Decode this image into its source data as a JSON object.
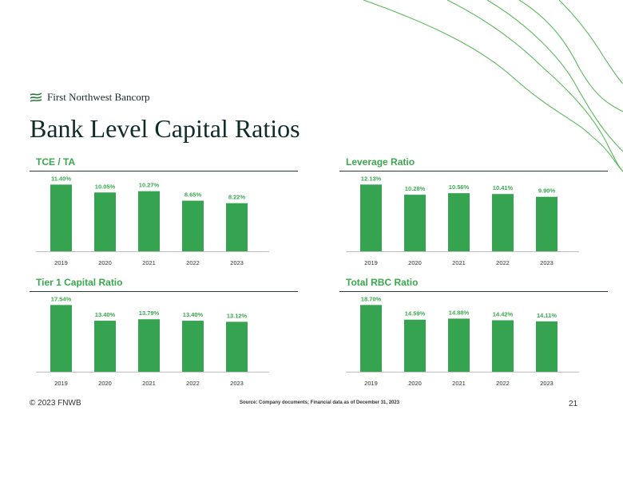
{
  "brand": {
    "name": "First Northwest Bancorp",
    "accent": "#35a350",
    "wave_color": "#5cb85c"
  },
  "slide": {
    "title": "Bank Level Capital Ratios",
    "page_number": "21"
  },
  "footer": {
    "copyright": "© 2023 FNWB",
    "source": "Source: Company documents; Financial data as of  December 31, 2023"
  },
  "chart_data": [
    {
      "type": "bar",
      "title": "TCE / TA",
      "categories": [
        "2019",
        "2020",
        "2021",
        "2022",
        "2023"
      ],
      "values": [
        11.4,
        10.05,
        10.27,
        8.65,
        8.22
      ],
      "labels": [
        "11.40%",
        "10.05%",
        "10.27%",
        "8.65%",
        "8.22%"
      ],
      "ylim": [
        0,
        12
      ]
    },
    {
      "type": "bar",
      "title": "Leverage Ratio",
      "categories": [
        "2019",
        "2020",
        "2021",
        "2022",
        "2023"
      ],
      "values": [
        12.13,
        10.28,
        10.56,
        10.41,
        9.9
      ],
      "labels": [
        "12.13%",
        "10.28%",
        "10.56%",
        "10.41%",
        "9.90%"
      ],
      "ylim": [
        0,
        12.76
      ]
    },
    {
      "type": "bar",
      "title": "Tier 1 Capital Ratio",
      "categories": [
        "2019",
        "2020",
        "2021",
        "2022",
        "2023"
      ],
      "values": [
        17.54,
        13.4,
        13.79,
        13.4,
        13.12
      ],
      "labels": [
        "17.54%",
        "13.40%",
        "13.79%",
        "13.40%",
        "13.12%"
      ],
      "ylim": [
        0,
        18.45
      ]
    },
    {
      "type": "bar",
      "title": "Total RBC Ratio",
      "categories": [
        "2019",
        "2020",
        "2021",
        "2022",
        "2023"
      ],
      "values": [
        18.7,
        14.59,
        14.88,
        14.42,
        14.11
      ],
      "labels": [
        "18.70%",
        "14.59%",
        "14.88%",
        "14.42%",
        "14.11%"
      ],
      "ylim": [
        0,
        19.67
      ]
    }
  ]
}
